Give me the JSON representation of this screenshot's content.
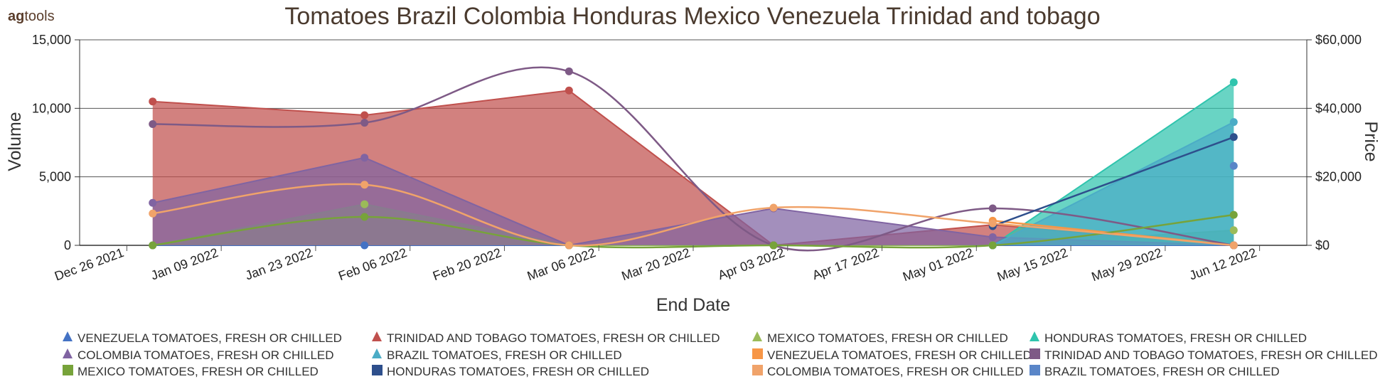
{
  "brand": {
    "prefix": "ag",
    "suffix": "tools"
  },
  "chart_data": {
    "type": "area",
    "title": "Tomatoes  Brazil Colombia Honduras Mexico Venezuela Trinidad and tobago",
    "xlabel": "End Date",
    "ylabel_left": "Volume",
    "ylabel_right": "Price",
    "x_ticks": [
      "Dec 26 2021",
      "Jan 09 2022",
      "Jan 23 2022",
      "Feb 06 2022",
      "Feb 20 2022",
      "Mar 06 2022",
      "Mar 20 2022",
      "Apr 03 2022",
      "Apr 17 2022",
      "May 01 2022",
      "May 15 2022",
      "May 29 2022",
      "Jun 12 2022"
    ],
    "xlim": [
      "2021-12-26",
      "2022-06-12"
    ],
    "y_left": {
      "range": [
        0,
        15000
      ],
      "ticks": [
        "0",
        "5,000",
        "10,000",
        "15,000"
      ]
    },
    "y_right": {
      "range": [
        0,
        60000
      ],
      "ticks": [
        "$0",
        "$20,000",
        "$40,000",
        "$60,000"
      ]
    },
    "grid": true,
    "legend_position": "bottom",
    "volume_series": [
      {
        "name": "VENEZUELA TOMATOES, FRESH OR CHILLED",
        "color": "#4472c4",
        "points": [
          [
            "2022-01-05",
            0
          ],
          [
            "2022-02-03",
            0
          ],
          [
            "2022-03-03",
            0
          ],
          [
            "2022-03-31",
            0
          ],
          [
            "2022-04-30",
            0
          ],
          [
            "2022-06-02",
            0
          ]
        ]
      },
      {
        "name": "TRINIDAD AND TOBAGO TOMATOES, FRESH OR CHILLED",
        "color": "#c0504d",
        "points": [
          [
            "2022-01-05",
            10500
          ],
          [
            "2022-02-03",
            9500
          ],
          [
            "2022-03-03",
            11300
          ],
          [
            "2022-03-31",
            0
          ],
          [
            "2022-04-30",
            1500
          ],
          [
            "2022-06-02",
            0
          ]
        ]
      },
      {
        "name": "MEXICO TOMATOES, FRESH OR CHILLED",
        "color": "#9bbb59",
        "points": [
          [
            "2022-01-05",
            0
          ],
          [
            "2022-02-03",
            3000
          ],
          [
            "2022-03-03",
            0
          ],
          [
            "2022-03-31",
            0
          ],
          [
            "2022-04-30",
            0
          ],
          [
            "2022-06-02",
            1100
          ]
        ]
      },
      {
        "name": "HONDURAS TOMATOES, FRESH OR CHILLED",
        "color": "#2fc4ad",
        "points": [
          [
            "2022-04-30",
            0
          ],
          [
            "2022-06-02",
            11900
          ]
        ]
      },
      {
        "name": "COLOMBIA TOMATOES, FRESH OR CHILLED",
        "color": "#8064a2",
        "points": [
          [
            "2022-01-05",
            3100
          ],
          [
            "2022-02-03",
            6400
          ],
          [
            "2022-03-03",
            0
          ],
          [
            "2022-03-31",
            2700
          ],
          [
            "2022-04-30",
            600
          ],
          [
            "2022-06-02",
            0
          ]
        ]
      },
      {
        "name": "BRAZIL TOMATOES, FRESH OR CHILLED",
        "color": "#4bacc6",
        "points": [
          [
            "2022-04-30",
            0
          ],
          [
            "2022-06-02",
            9000
          ]
        ]
      }
    ],
    "price_series": [
      {
        "name": "VENEZUELA TOMATOES, FRESH OR CHILLED",
        "color": "#f79646",
        "points": [
          [
            "2022-04-30",
            7200
          ],
          [
            "2022-06-02",
            0
          ]
        ]
      },
      {
        "name": "TRINIDAD AND TOBAGO TOMATOES, FRESH OR CHILLED",
        "color": "#7e5a86",
        "points": [
          [
            "2022-01-05",
            35400
          ],
          [
            "2022-02-03",
            35800
          ],
          [
            "2022-03-03",
            50800
          ],
          [
            "2022-03-31",
            0
          ],
          [
            "2022-04-30",
            10800
          ],
          [
            "2022-06-02",
            0
          ]
        ]
      },
      {
        "name": "MEXICO TOMATOES, FRESH OR CHILLED",
        "color": "#77a33a",
        "points": [
          [
            "2022-01-05",
            0
          ],
          [
            "2022-02-03",
            8300
          ],
          [
            "2022-03-03",
            0
          ],
          [
            "2022-03-31",
            0
          ],
          [
            "2022-04-30",
            0
          ],
          [
            "2022-06-02",
            8900
          ]
        ]
      },
      {
        "name": "HONDURAS TOMATOES, FRESH OR CHILLED",
        "color": "#2e4f8c",
        "points": [
          [
            "2022-04-30",
            5600
          ],
          [
            "2022-06-02",
            31600
          ]
        ]
      },
      {
        "name": "COLOMBIA TOMATOES, FRESH OR CHILLED",
        "color": "#f0a36a",
        "points": [
          [
            "2022-01-05",
            9300
          ],
          [
            "2022-02-03",
            17700
          ],
          [
            "2022-03-03",
            0
          ],
          [
            "2022-03-31",
            11000
          ],
          [
            "2022-04-30",
            6400
          ],
          [
            "2022-06-02",
            0
          ]
        ]
      },
      {
        "name": "BRAZIL TOMATOES, FRESH OR CHILLED",
        "color": "#5a86c8",
        "points": [
          [
            "2022-06-02",
            23200
          ]
        ]
      }
    ]
  },
  "legend": [
    {
      "label": "VENEZUELA TOMATOES, FRESH OR CHILLED",
      "shape": "triangle",
      "color": "#4472c4"
    },
    {
      "label": "TRINIDAD AND TOBAGO TOMATOES, FRESH OR CHILLED",
      "shape": "triangle",
      "color": "#c0504d"
    },
    {
      "label": "MEXICO TOMATOES, FRESH OR CHILLED",
      "shape": "triangle",
      "color": "#9bbb59"
    },
    {
      "label": "HONDURAS TOMATOES, FRESH OR CHILLED",
      "shape": "triangle",
      "color": "#2fc4ad"
    },
    {
      "label": "COLOMBIA TOMATOES, FRESH OR CHILLED",
      "shape": "triangle",
      "color": "#8064a2"
    },
    {
      "label": "BRAZIL TOMATOES, FRESH OR CHILLED",
      "shape": "triangle",
      "color": "#4bacc6"
    },
    {
      "label": "VENEZUELA TOMATOES, FRESH OR CHILLED",
      "shape": "square",
      "color": "#f79646"
    },
    {
      "label": "TRINIDAD AND TOBAGO TOMATOES, FRESH OR CHILLED",
      "shape": "square",
      "color": "#7e5a86"
    },
    {
      "label": "MEXICO TOMATOES, FRESH OR CHILLED",
      "shape": "square",
      "color": "#77a33a"
    },
    {
      "label": "HONDURAS TOMATOES, FRESH OR CHILLED",
      "shape": "square",
      "color": "#2e4f8c"
    },
    {
      "label": "COLOMBIA TOMATOES, FRESH OR CHILLED",
      "shape": "square",
      "color": "#f0a36a"
    },
    {
      "label": "BRAZIL TOMATOES, FRESH OR CHILLED",
      "shape": "square",
      "color": "#5a86c8"
    }
  ]
}
